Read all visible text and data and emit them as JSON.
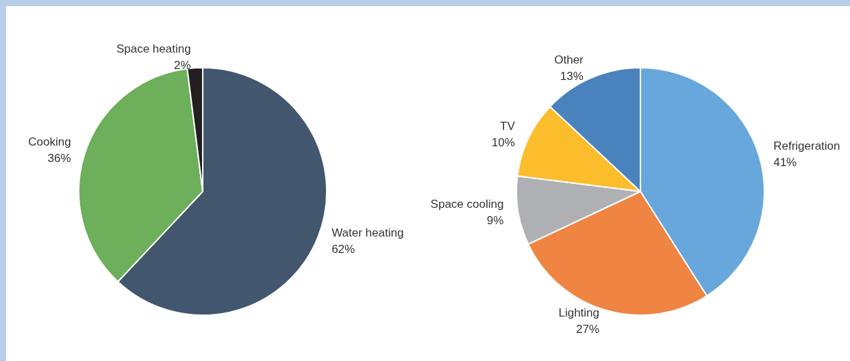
{
  "chart_data": [
    {
      "type": "pie",
      "categories": [
        "Water heating",
        "Cooking",
        "Space heating"
      ],
      "values": [
        62,
        36,
        2
      ],
      "value_labels": [
        "62%",
        "36%",
        "2%"
      ],
      "colors": [
        "#42566e",
        "#6daf5a",
        "#231f20"
      ],
      "legend": false
    },
    {
      "type": "pie",
      "categories": [
        "Refrigeration",
        "Lighting",
        "Space cooling",
        "TV",
        "Other"
      ],
      "values": [
        41,
        27,
        9,
        10,
        13
      ],
      "value_labels": [
        "41%",
        "27%",
        "9%",
        "10%",
        "13%"
      ],
      "colors": [
        "#68a7db",
        "#ef8443",
        "#afb0b3",
        "#fbbd2c",
        "#4a82be"
      ],
      "legend": false
    }
  ]
}
